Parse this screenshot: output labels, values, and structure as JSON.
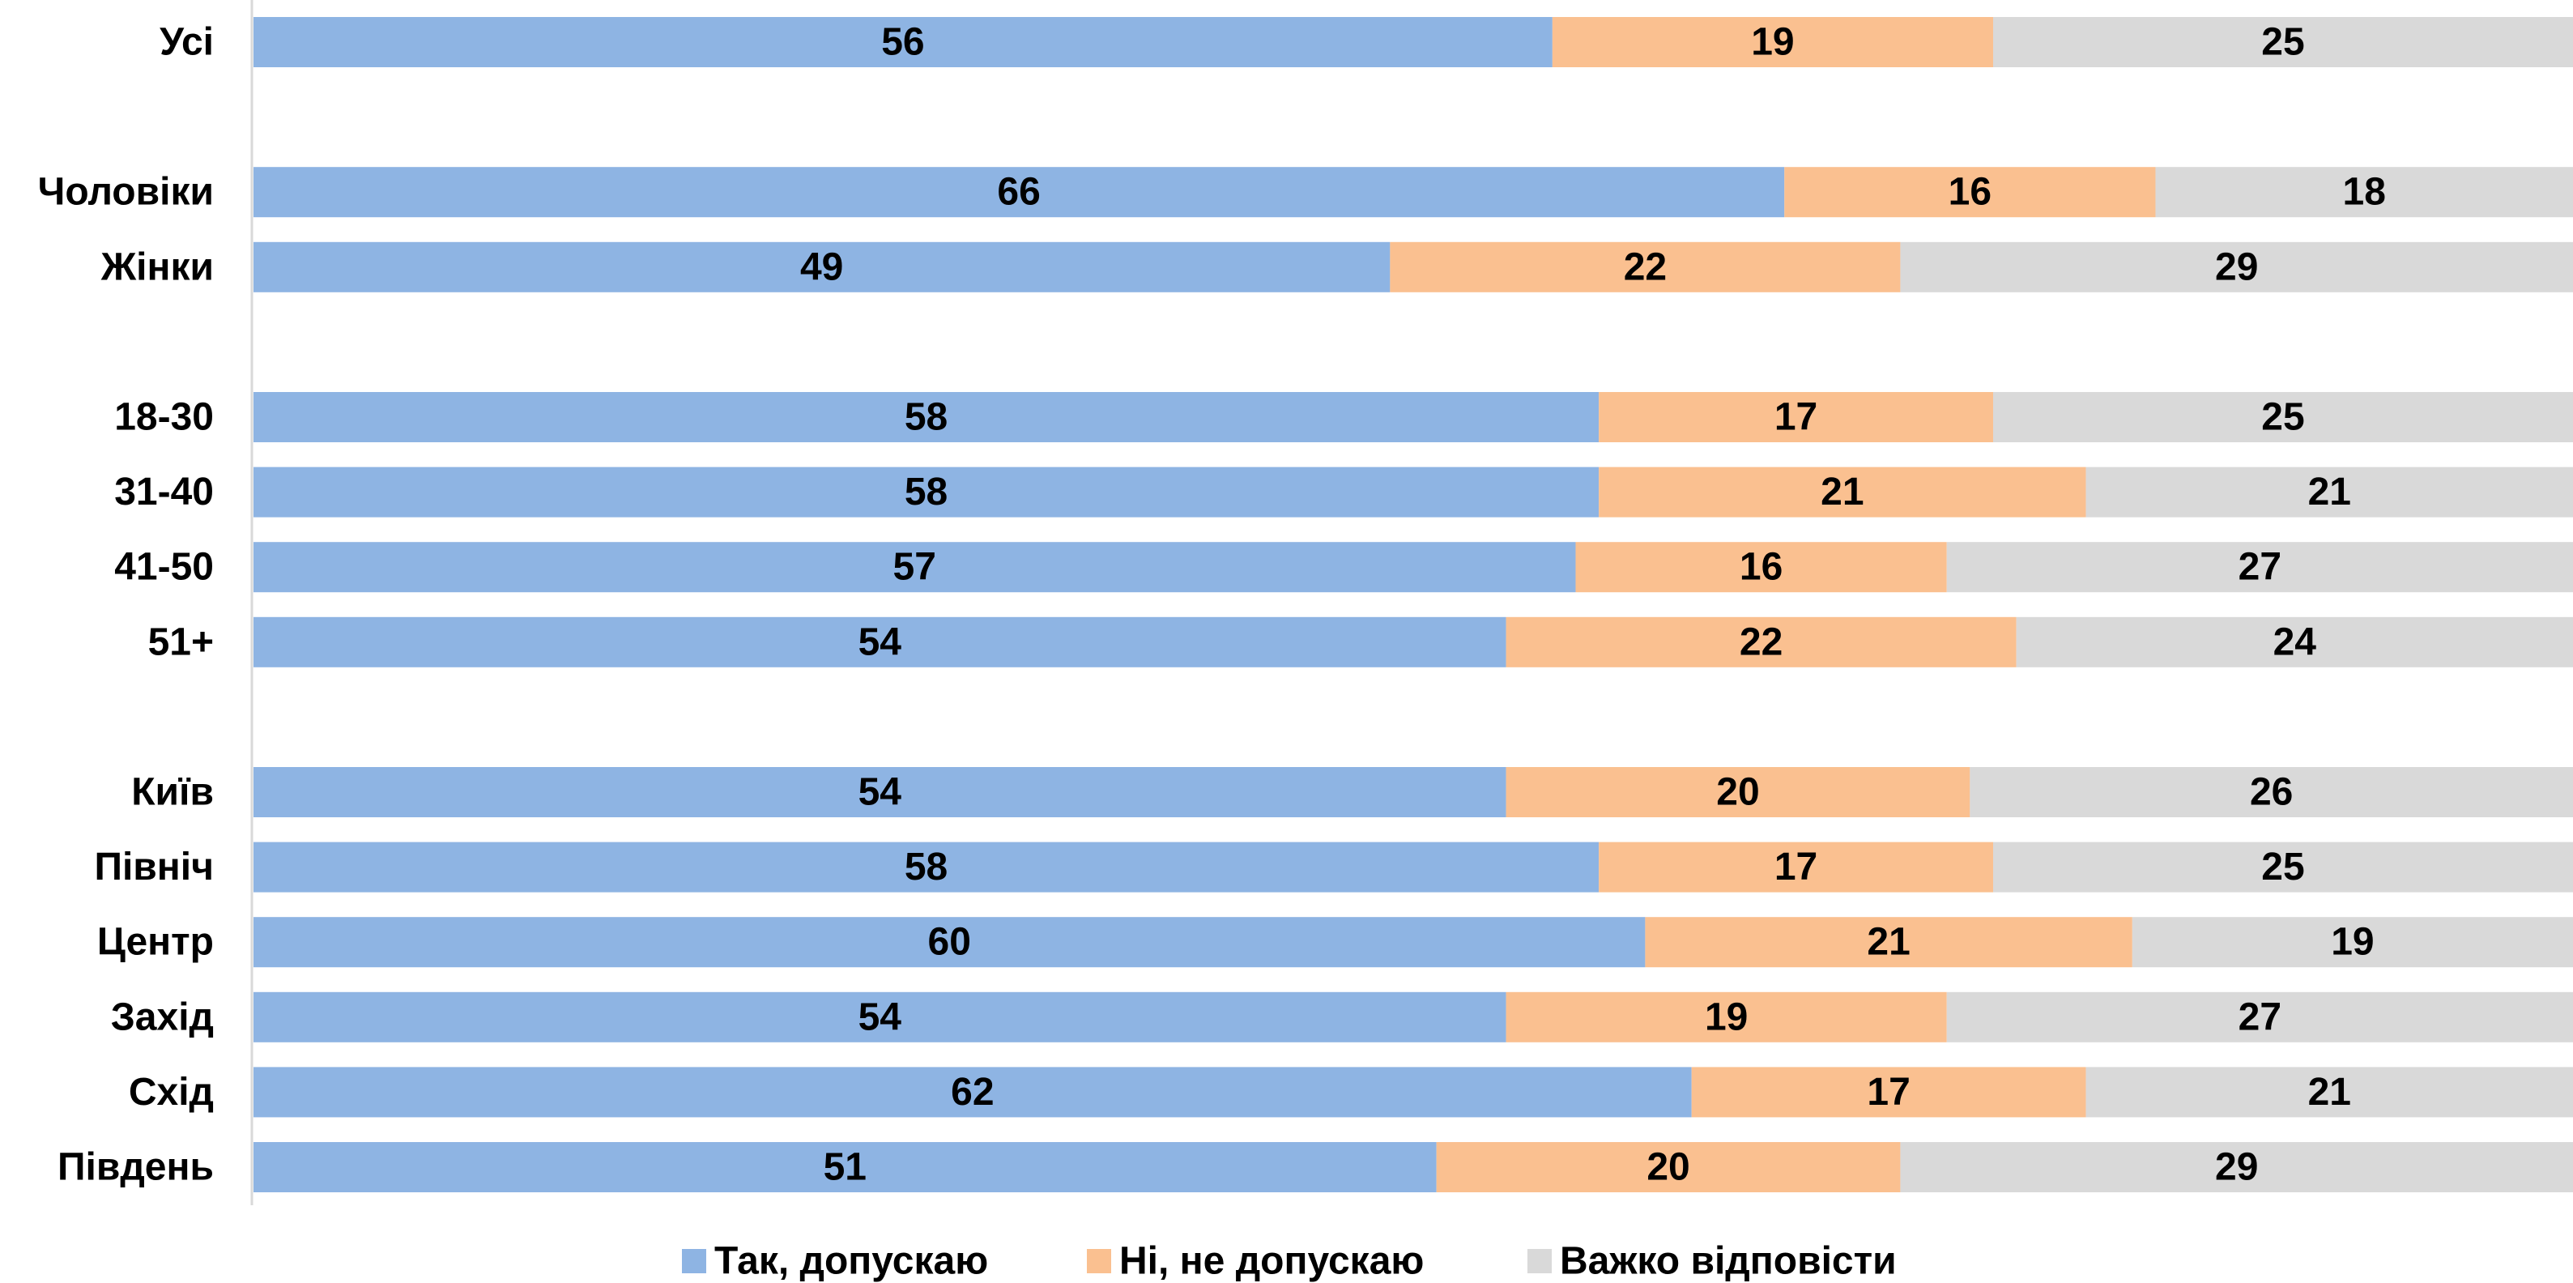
{
  "chart_data": {
    "type": "bar",
    "orientation": "horizontal",
    "stacked": true,
    "percent_stacked": true,
    "xlim": [
      0,
      100
    ],
    "grid": false,
    "legend_position": "bottom",
    "categories": [
      "Усі",
      "Чоловіки",
      "Жінки",
      "18-30",
      "31-40",
      "41-50",
      "51+",
      "Київ",
      "Північ",
      "Центр",
      "Захід",
      "Схід",
      "Південь"
    ],
    "groups_after": [
      0,
      2,
      6
    ],
    "series": [
      {
        "name": "Так, допускаю",
        "color": "#8eb4e3",
        "values": [
          56,
          66,
          49,
          58,
          58,
          57,
          54,
          54,
          58,
          60,
          54,
          62,
          51
        ]
      },
      {
        "name": "Ні, не допускаю",
        "color": "#fac090",
        "values": [
          19,
          16,
          22,
          17,
          21,
          16,
          22,
          20,
          17,
          21,
          19,
          17,
          20
        ]
      },
      {
        "name": "Важко відповісти",
        "color": "#d9d9d9",
        "values": [
          25,
          18,
          29,
          25,
          21,
          27,
          24,
          26,
          25,
          19,
          27,
          21,
          29
        ]
      }
    ]
  }
}
